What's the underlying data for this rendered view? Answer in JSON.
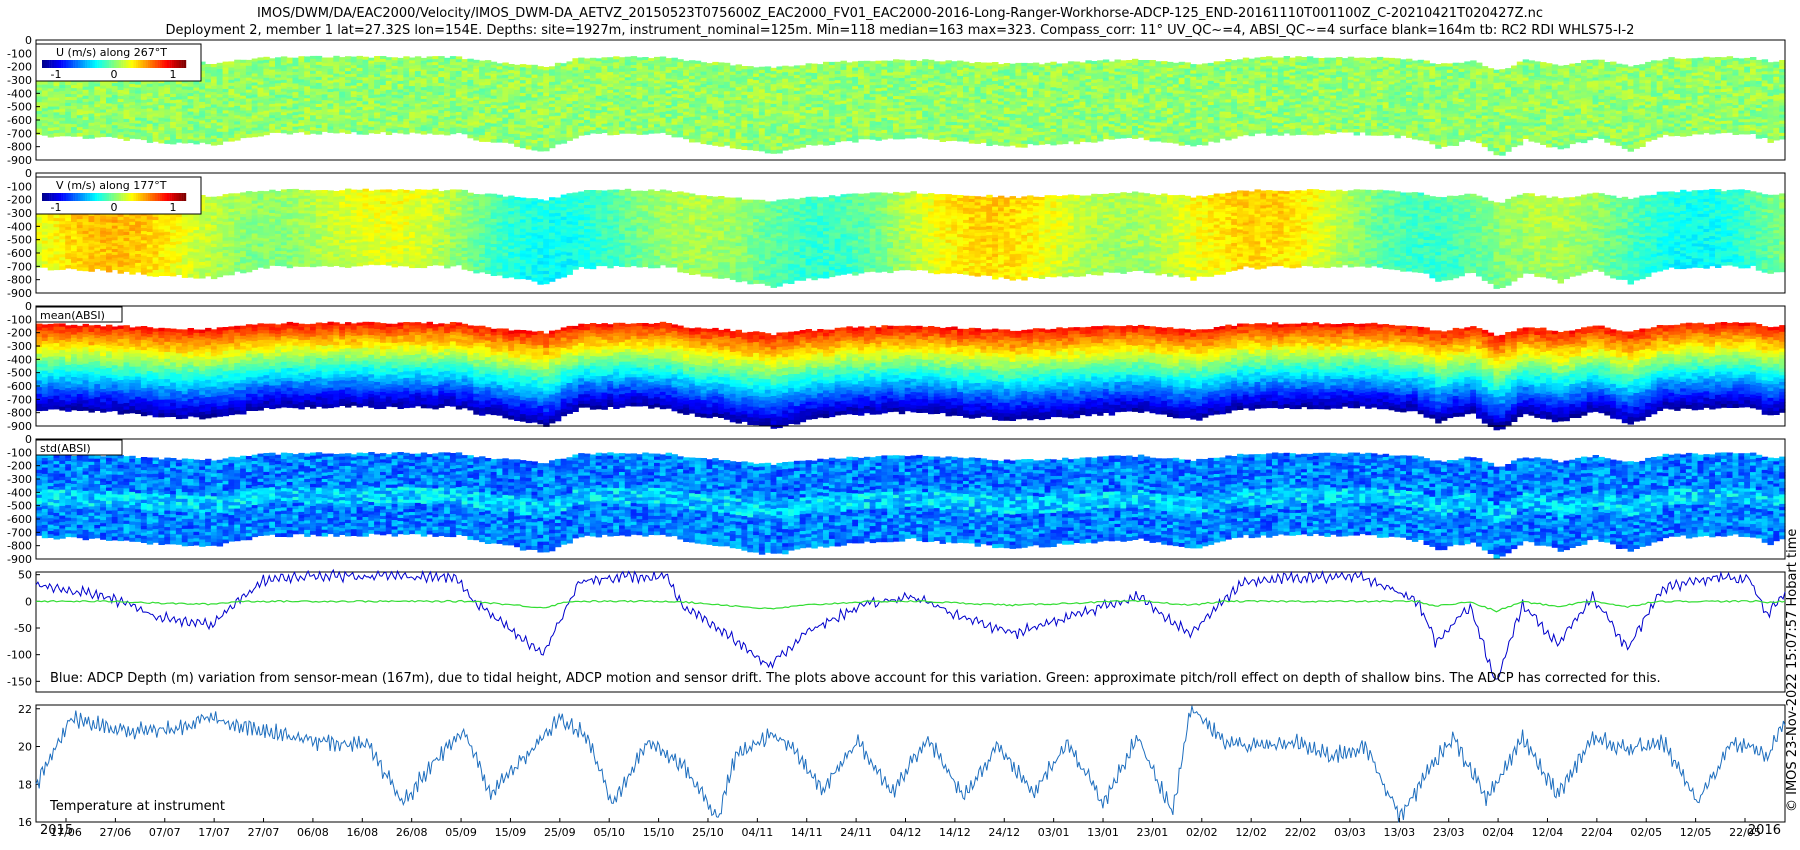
{
  "header": {
    "title_line1": "IMOS/DWM/DA/EAC2000/Velocity/IMOS_DWM-DA_AETVZ_20150523T075600Z_EAC2000_FV01_EAC2000-2016-Long-Ranger-Workhorse-ADCP-125_END-20161110T001100Z_C-20210421T020427Z.nc",
    "title_line2": "Deployment 2, member 1 lat=27.32S lon=154E. Depths: site=1927m, instrument_nominal=125m. Min=118 median=163 max=323. Compass_corr: 11° UV_QC~=4, ABSI_QC~=4 surface blank=164m tb: RC2 RDI WHLS75-I-2"
  },
  "copyright": "© IMOS 23-Nov-2022 15:07:57 Hobart time",
  "colors": {
    "jet": [
      "#00008f",
      "#0000ff",
      "#007fff",
      "#00ffff",
      "#7fff7f",
      "#ffff00",
      "#ff7f00",
      "#ff0000",
      "#7f0000"
    ],
    "depth_line": "#0000cc",
    "pitch_line": "#33dd33",
    "temperature_line": "#1f6fbf"
  },
  "chart_data": [
    {
      "type": "heatmap",
      "panel": "U",
      "legend_label": "U (m/s) along 267°T",
      "colorbar_ticks": [
        "-1",
        "0",
        "1"
      ],
      "yticks": [
        "0",
        "100",
        "200",
        "300",
        "400",
        "500",
        "600",
        "700",
        "800",
        "900"
      ],
      "ylim": [
        0,
        900
      ],
      "reversed_y": true,
      "bin_top_m": 150,
      "bin_bottom_m": 740,
      "typical_value": 0.0
    },
    {
      "type": "heatmap",
      "panel": "V",
      "legend_label": "V (m/s) along 177°T",
      "colorbar_ticks": [
        "-1",
        "0",
        "1"
      ],
      "yticks": [
        "0",
        "100",
        "200",
        "300",
        "400",
        "500",
        "600",
        "700",
        "800",
        "900"
      ],
      "ylim": [
        0,
        900
      ],
      "reversed_y": true,
      "bin_top_m": 150,
      "bin_bottom_m": 740,
      "typical_value": 0.3
    },
    {
      "type": "heatmap",
      "panel": "mean(ABSI)",
      "legend_label": "mean(ABSI)",
      "yticks": [
        "0",
        "100",
        "200",
        "300",
        "400",
        "500",
        "600",
        "700",
        "800",
        "900"
      ],
      "ylim": [
        0,
        900
      ],
      "reversed_y": true,
      "bin_top_m": 150,
      "bin_bottom_m": 800
    },
    {
      "type": "heatmap",
      "panel": "std(ABSI)",
      "legend_label": "std(ABSI)",
      "yticks": [
        "0",
        "100",
        "200",
        "300",
        "400",
        "500",
        "600",
        "700",
        "800",
        "900"
      ],
      "ylim": [
        0,
        900
      ],
      "reversed_y": true,
      "bin_top_m": 130,
      "bin_bottom_m": 760
    },
    {
      "type": "line",
      "panel": "depth",
      "annotation": "Blue: ADCP Depth (m) variation from sensor-mean (167m), due to tidal height, ADCP motion and sensor drift. The plots above account for this variation. Green: approximate pitch/roll effect on depth of shallow bins. The ADCP has corrected for this.",
      "yticks": [
        "50",
        "0",
        "-50",
        "-100",
        "-150"
      ],
      "ylim": [
        -170,
        55
      ],
      "series": [
        {
          "color": "#0000cc",
          "x": [
            0,
            0.04,
            0.07,
            0.1,
            0.13,
            0.16,
            0.2,
            0.24,
            0.25,
            0.27,
            0.29,
            0.31,
            0.33,
            0.36,
            0.37,
            0.39,
            0.42,
            0.44,
            0.47,
            0.5,
            0.53,
            0.56,
            0.6,
            0.63,
            0.66,
            0.69,
            0.72,
            0.76,
            0.79,
            0.8,
            0.82,
            0.835,
            0.85,
            0.87,
            0.89,
            0.91,
            0.93,
            0.96,
            0.98,
            0.99,
            1.0
          ],
          "y": [
            30,
            10,
            -30,
            -45,
            40,
            48,
            48,
            45,
            0,
            -50,
            -100,
            35,
            46,
            45,
            -10,
            -50,
            -120,
            -60,
            -10,
            10,
            -30,
            -60,
            -20,
            10,
            -60,
            35,
            45,
            45,
            0,
            -75,
            -10,
            -155,
            -5,
            -80,
            10,
            -90,
            25,
            45,
            40,
            -25,
            15
          ]
        }
      ]
    },
    {
      "type": "line",
      "panel": "temperature",
      "annotation": "Temperature at instrument",
      "yticks": [
        "22",
        "20",
        "18",
        "16"
      ],
      "ylim": [
        16,
        22.2
      ],
      "x_start_label": "2015",
      "x_end_label": "2016",
      "categories": [
        "17/06",
        "27/06",
        "07/07",
        "17/07",
        "27/07",
        "06/08",
        "16/08",
        "26/08",
        "05/09",
        "15/09",
        "25/09",
        "05/10",
        "15/10",
        "25/10",
        "04/11",
        "14/11",
        "24/11",
        "04/12",
        "14/12",
        "24/12",
        "03/01",
        "13/01",
        "23/01",
        "02/02",
        "12/02",
        "22/02",
        "03/03",
        "13/03",
        "23/03",
        "02/04",
        "12/04",
        "22/04",
        "02/05",
        "12/05",
        "22/05"
      ],
      "series": [
        {
          "color": "#1f6fbf",
          "x": [
            0,
            0.02,
            0.04,
            0.07,
            0.1,
            0.13,
            0.16,
            0.19,
            0.21,
            0.23,
            0.245,
            0.26,
            0.28,
            0.3,
            0.315,
            0.33,
            0.35,
            0.37,
            0.39,
            0.4,
            0.42,
            0.43,
            0.45,
            0.47,
            0.49,
            0.51,
            0.53,
            0.55,
            0.57,
            0.59,
            0.61,
            0.63,
            0.65,
            0.66,
            0.68,
            0.7,
            0.72,
            0.74,
            0.76,
            0.78,
            0.795,
            0.81,
            0.83,
            0.85,
            0.87,
            0.89,
            0.91,
            0.93,
            0.95,
            0.97,
            0.99,
            1.0
          ],
          "y": [
            18,
            21.5,
            21,
            20.8,
            21.5,
            20.9,
            20.3,
            20,
            17,
            19.5,
            20.8,
            17.5,
            19.5,
            21.5,
            20.5,
            17,
            20.3,
            19,
            16.2,
            19.5,
            20.6,
            20.2,
            17.8,
            20.3,
            17.5,
            20.5,
            17.3,
            20,
            17.5,
            20.2,
            17,
            20.5,
            16.5,
            22,
            20.2,
            20,
            20.2,
            19.5,
            20,
            16.3,
            18.5,
            20.5,
            17.2,
            20.5,
            17.5,
            20.5,
            19.8,
            20.3,
            17,
            20.3,
            19.5,
            21.5
          ]
        }
      ]
    }
  ]
}
